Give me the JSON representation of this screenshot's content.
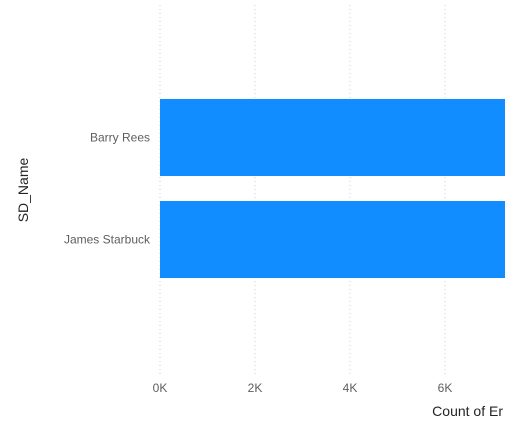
{
  "chart_data": {
    "type": "bar",
    "orientation": "horizontal",
    "categories": [
      "Barry Rees",
      "James Starbuck"
    ],
    "series": [
      {
        "values": [
          7300,
          7300
        ],
        "color": "#118dff"
      }
    ],
    "xlabel": "Count of Er",
    "ylabel": "SD_Name",
    "xlim": [
      0,
      7300
    ],
    "x_ticks": [
      {
        "value": 0,
        "label": "0K"
      },
      {
        "value": 2000,
        "label": "2K"
      },
      {
        "value": 4000,
        "label": "4K"
      },
      {
        "value": 6000,
        "label": "6K"
      }
    ],
    "grid": true,
    "gridline_color": "#d0d0d0",
    "text_color": "#605e5c",
    "title_color": "#252423",
    "values_clipped_at_right_edge": true
  }
}
